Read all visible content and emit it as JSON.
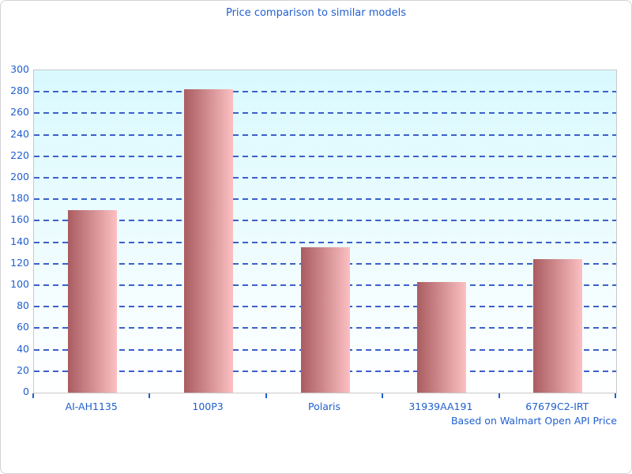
{
  "chart_data": {
    "type": "bar",
    "title": "Price comparison to similar models",
    "categories": [
      "AI-AH1135",
      "100P3",
      "Polaris",
      "31939AA191",
      "67679C2-IRT"
    ],
    "values": [
      170,
      282,
      135,
      103,
      124
    ],
    "xlabel": "",
    "ylabel": "",
    "ylim": [
      0,
      300
    ],
    "ytick_step": 20,
    "grid": "horizontal-dashed",
    "legend": "none",
    "annotation": "Based on Walmart Open API Price"
  },
  "colors": {
    "text_blue": "#2160cf",
    "grid_blue": "#3b61c9",
    "bar_gradient_left": "#a95c60",
    "bar_gradient_right": "#fcc0c2",
    "plot_bg_top": "#d9f9fe",
    "plot_bg_bottom": "#ffffff",
    "plot_border": "#c9c9c9",
    "page_border": "#d3d3d8"
  }
}
